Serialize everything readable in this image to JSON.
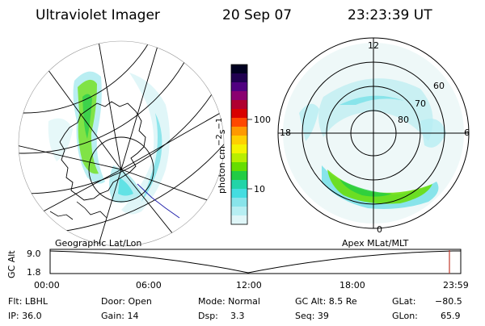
{
  "header": {
    "instrument": "Ultraviolet Imager",
    "date": "20 Sep 07",
    "time": "23:23:39 UT"
  },
  "left_panel": {
    "caption": "Geographic Lat/Lon"
  },
  "right_panel": {
    "caption": "Apex MLat/MLT",
    "mlt_labels": {
      "top": "12",
      "left": "18",
      "right": "6",
      "bottom": "0"
    },
    "mlat_labels": [
      "60",
      "70",
      "80"
    ]
  },
  "colorbar": {
    "unit": "photon cm",
    "unit_exp1": "−2",
    "unit_mid": "s",
    "unit_exp2": "−1",
    "ticks": [
      "100",
      "10"
    ],
    "colors": [
      "#000020",
      "#200050",
      "#500080",
      "#8a0070",
      "#b00030",
      "#d80000",
      "#ff4800",
      "#ff9900",
      "#ffd000",
      "#f4f400",
      "#b8ee00",
      "#66dd00",
      "#22cc44",
      "#22d4a8",
      "#44dde0",
      "#88e4ea",
      "#b6eef2",
      "#dff6f8"
    ]
  },
  "timeline": {
    "y_axis_label": "GC Alt",
    "y_ticks": [
      "9.0",
      "1.8"
    ],
    "x_ticks": [
      "00:00",
      "06:00",
      "12:00",
      "18:00",
      "23:59"
    ],
    "current_marker_color": "#c0392b"
  },
  "status": {
    "flt": "Flt: LBHL",
    "ip": "IP: 36.0",
    "door": "Door: Open",
    "gain": "Gain: 14",
    "mode": "Mode: Normal",
    "dsp_label": "Dsp:",
    "dsp_value": "3.3",
    "gc_alt": "GC Alt: 8.5 Re",
    "seq": "Seq: 39",
    "glat_label": "GLat:",
    "glat_value": "−80.5",
    "glon_label": "GLon:",
    "glon_value": "65.9"
  }
}
